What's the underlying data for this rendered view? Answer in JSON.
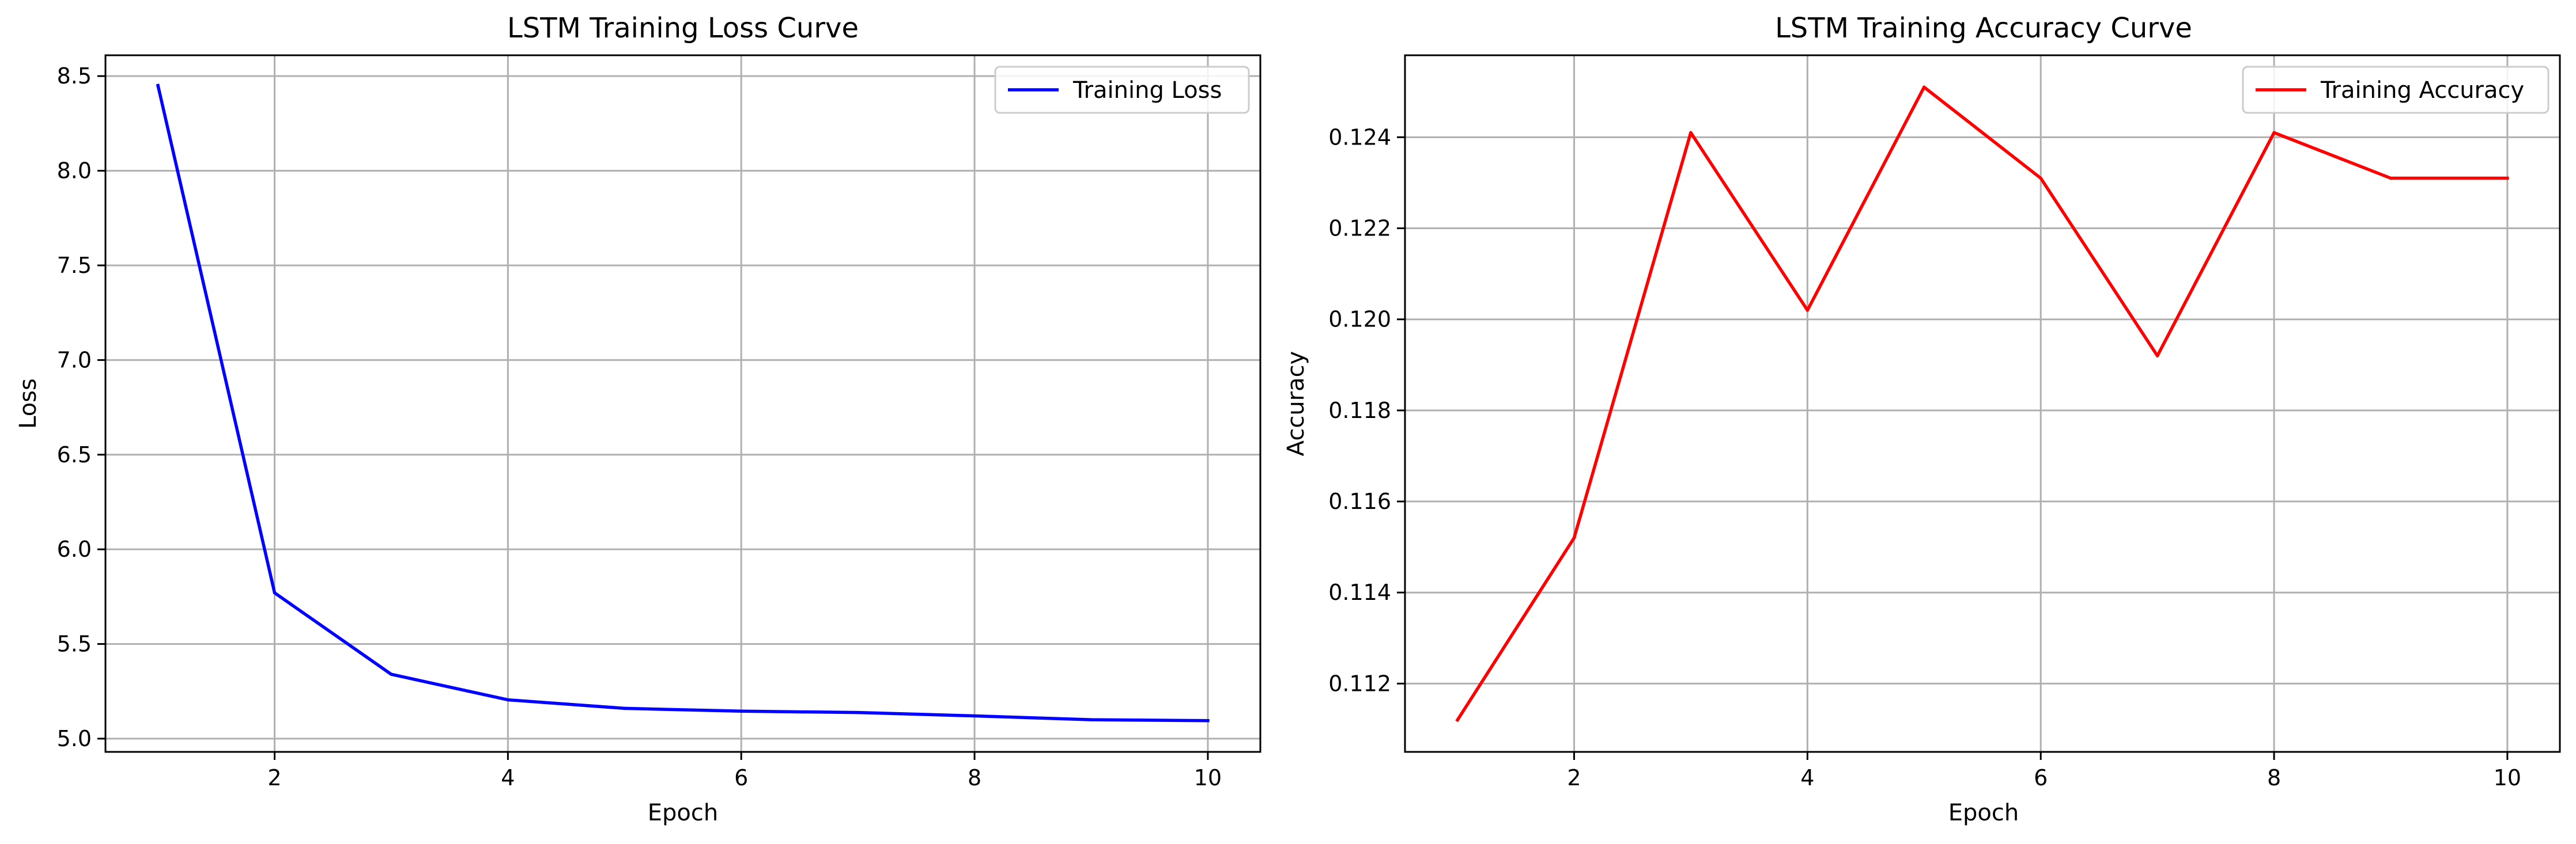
{
  "chart_data": [
    {
      "type": "line",
      "title": "LSTM Training Loss Curve",
      "xlabel": "Epoch",
      "ylabel": "Loss",
      "x": [
        1,
        2,
        3,
        4,
        5,
        6,
        7,
        8,
        9,
        10
      ],
      "xlim": [
        0.55,
        10.45
      ],
      "ylim": [
        4.93,
        8.61
      ],
      "xticks": [
        2,
        4,
        6,
        8,
        10
      ],
      "xtick_labels": [
        "2",
        "4",
        "6",
        "8",
        "10"
      ],
      "yticks": [
        5.0,
        5.5,
        6.0,
        6.5,
        7.0,
        7.5,
        8.0,
        8.5
      ],
      "ytick_labels": [
        "5.0",
        "5.5",
        "6.0",
        "6.5",
        "7.0",
        "7.5",
        "8.0",
        "8.5"
      ],
      "grid": true,
      "legend_position": "top-right",
      "series": [
        {
          "name": "Training Loss",
          "color": "#0000ff",
          "values": [
            8.45,
            5.77,
            5.34,
            5.205,
            5.16,
            5.145,
            5.138,
            5.12,
            5.1,
            5.095
          ]
        }
      ]
    },
    {
      "type": "line",
      "title": "LSTM Training Accuracy Curve",
      "xlabel": "Epoch",
      "ylabel": "Accuracy",
      "x": [
        1,
        2,
        3,
        4,
        5,
        6,
        7,
        8,
        9,
        10
      ],
      "xlim": [
        0.55,
        10.45
      ],
      "ylim": [
        0.1105,
        0.1258
      ],
      "xticks": [
        2,
        4,
        6,
        8,
        10
      ],
      "xtick_labels": [
        "2",
        "4",
        "6",
        "8",
        "10"
      ],
      "yticks": [
        0.112,
        0.114,
        0.116,
        0.118,
        0.12,
        0.122,
        0.124
      ],
      "ytick_labels": [
        "0.112",
        "0.114",
        "0.116",
        "0.118",
        "0.120",
        "0.122",
        "0.124"
      ],
      "grid": true,
      "legend_position": "top-right",
      "series": [
        {
          "name": "Training Accuracy",
          "color": "#ff0000",
          "values": [
            0.1112,
            0.1152,
            0.1241,
            0.1202,
            0.1251,
            0.1231,
            0.1192,
            0.1241,
            0.1231,
            0.1231
          ]
        }
      ]
    }
  ]
}
